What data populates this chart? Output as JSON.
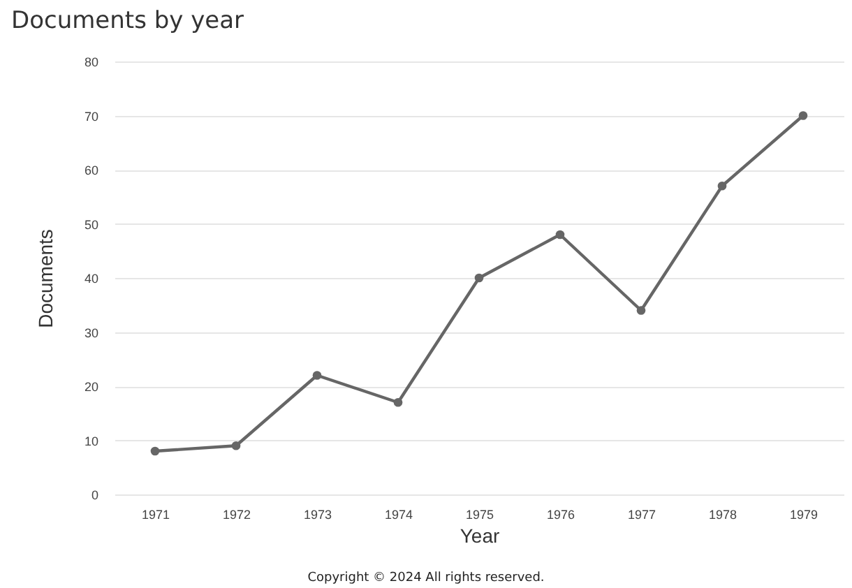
{
  "chart_data": {
    "type": "line",
    "title": "Documents by year",
    "xlabel": "Year",
    "ylabel": "Documents",
    "categories": [
      "1971",
      "1972",
      "1973",
      "1974",
      "1975",
      "1976",
      "1977",
      "1978",
      "1979"
    ],
    "series": [
      {
        "color": "#666666",
        "values": [
          8,
          9,
          22,
          17,
          40,
          48,
          34,
          57,
          70
        ]
      }
    ],
    "ylim": [
      0,
      80
    ],
    "yticks": [
      0,
      10,
      20,
      30,
      40,
      50,
      60,
      70,
      80
    ],
    "grid": "y",
    "marker": "circle",
    "line_style": "solid",
    "annotations": [
      "Copyright © 2024 All rights reserved."
    ]
  }
}
